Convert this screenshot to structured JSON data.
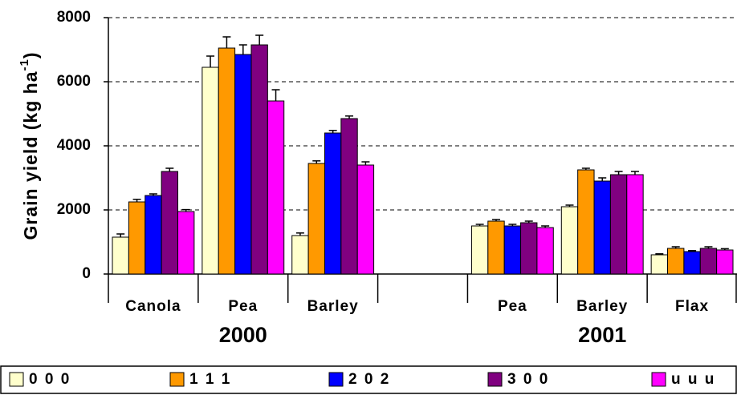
{
  "chart_data": {
    "type": "bar",
    "y_label": [
      "Grain yield (kg ha",
      "-1",
      ")"
    ],
    "categories": [
      "Canola",
      "Pea",
      "Barley",
      null,
      "Pea",
      "Barley",
      "Flax"
    ],
    "groups": [
      {
        "label": "2000"
      },
      {
        "label": "2001"
      }
    ],
    "series": [
      {
        "name": "0 0 0",
        "color": "#ffffcc",
        "values": [
          1150,
          6450,
          1200,
          null,
          1500,
          2100,
          600
        ],
        "errors": [
          100,
          350,
          80,
          null,
          50,
          50,
          30
        ]
      },
      {
        "name": "1 1 1",
        "color": "#ff9900",
        "values": [
          2250,
          7050,
          3450,
          null,
          1650,
          3250,
          800
        ],
        "errors": [
          80,
          350,
          80,
          null,
          50,
          50,
          50
        ]
      },
      {
        "name": "2 0 2",
        "color": "#0000ff",
        "values": [
          2450,
          6850,
          4400,
          null,
          1500,
          2900,
          700
        ],
        "errors": [
          50,
          300,
          80,
          null,
          50,
          100,
          30
        ]
      },
      {
        "name": "3 0 0",
        "color": "#800080",
        "values": [
          3200,
          7150,
          4850,
          null,
          1600,
          3100,
          800
        ],
        "errors": [
          100,
          300,
          80,
          null,
          50,
          100,
          50
        ]
      },
      {
        "name": "u u u",
        "color": "#ff00ff",
        "values": [
          1950,
          5400,
          3400,
          null,
          1450,
          3100,
          750
        ],
        "errors": [
          60,
          350,
          100,
          null,
          50,
          100,
          40
        ]
      }
    ],
    "ylim": [
      0,
      8000
    ],
    "yticks": [
      0,
      2000,
      4000,
      6000,
      8000
    ],
    "grid": true,
    "legend": "bottom"
  }
}
